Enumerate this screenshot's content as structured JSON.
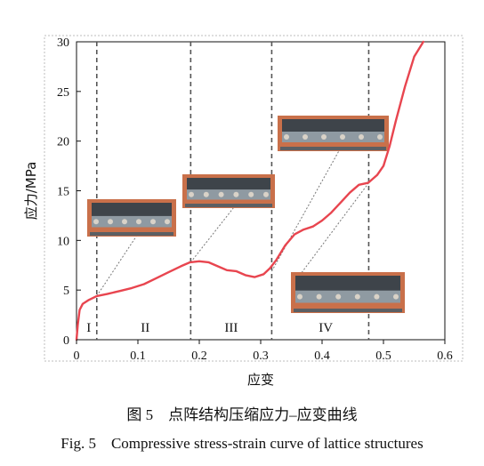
{
  "chart_data": {
    "type": "line",
    "xlabel": "应变",
    "ylabel": "应力/MPa",
    "xlim": [
      0,
      0.6
    ],
    "ylim": [
      0,
      30
    ],
    "x_ticks": [
      "0",
      "0.1",
      "0.2",
      "0.3",
      "0.4",
      "0.5",
      "0.6"
    ],
    "y_ticks": [
      "0",
      "5",
      "10",
      "15",
      "20",
      "25",
      "30"
    ],
    "grid": false,
    "series": [
      {
        "color": "#e8454f",
        "points": [
          [
            0.0,
            0.0
          ],
          [
            0.002,
            1.5
          ],
          [
            0.005,
            3.0
          ],
          [
            0.01,
            3.6
          ],
          [
            0.02,
            4.0
          ],
          [
            0.033,
            4.4
          ],
          [
            0.05,
            4.6
          ],
          [
            0.07,
            4.9
          ],
          [
            0.09,
            5.2
          ],
          [
            0.11,
            5.6
          ],
          [
            0.13,
            6.2
          ],
          [
            0.15,
            6.8
          ],
          [
            0.17,
            7.4
          ],
          [
            0.185,
            7.8
          ],
          [
            0.2,
            7.9
          ],
          [
            0.215,
            7.8
          ],
          [
            0.23,
            7.4
          ],
          [
            0.245,
            7.0
          ],
          [
            0.26,
            6.9
          ],
          [
            0.275,
            6.5
          ],
          [
            0.29,
            6.3
          ],
          [
            0.305,
            6.6
          ],
          [
            0.315,
            7.2
          ],
          [
            0.325,
            8.0
          ],
          [
            0.34,
            9.5
          ],
          [
            0.355,
            10.6
          ],
          [
            0.37,
            11.1
          ],
          [
            0.385,
            11.4
          ],
          [
            0.4,
            12.0
          ],
          [
            0.415,
            12.8
          ],
          [
            0.43,
            13.8
          ],
          [
            0.445,
            14.8
          ],
          [
            0.46,
            15.6
          ],
          [
            0.475,
            15.8
          ],
          [
            0.49,
            16.6
          ],
          [
            0.5,
            17.5
          ],
          [
            0.51,
            19.5
          ],
          [
            0.52,
            22.0
          ],
          [
            0.535,
            25.5
          ],
          [
            0.55,
            28.5
          ],
          [
            0.565,
            30.0
          ]
        ]
      }
    ],
    "stage_boundaries": [
      0.033,
      0.186,
      0.318,
      0.476
    ],
    "stage_labels": [
      {
        "label": "I",
        "x": 0.02
      },
      {
        "label": "II",
        "x": 0.112
      },
      {
        "label": "III",
        "x": 0.252
      },
      {
        "label": "IV",
        "x": 0.406
      }
    ],
    "photo_callouts": [
      {
        "name": "stage-1",
        "point": [
          0.033,
          4.4
        ]
      },
      {
        "name": "stage-2",
        "point": [
          0.186,
          7.8
        ]
      },
      {
        "name": "stage-3",
        "point": [
          0.318,
          6.9
        ]
      },
      {
        "name": "stage-4",
        "point": [
          0.476,
          15.8
        ]
      }
    ]
  },
  "caption": {
    "chinese": "图 5　点阵结构压缩应力–应变曲线",
    "english": "Fig. 5　Compressive stress-strain curve of lattice structures"
  }
}
